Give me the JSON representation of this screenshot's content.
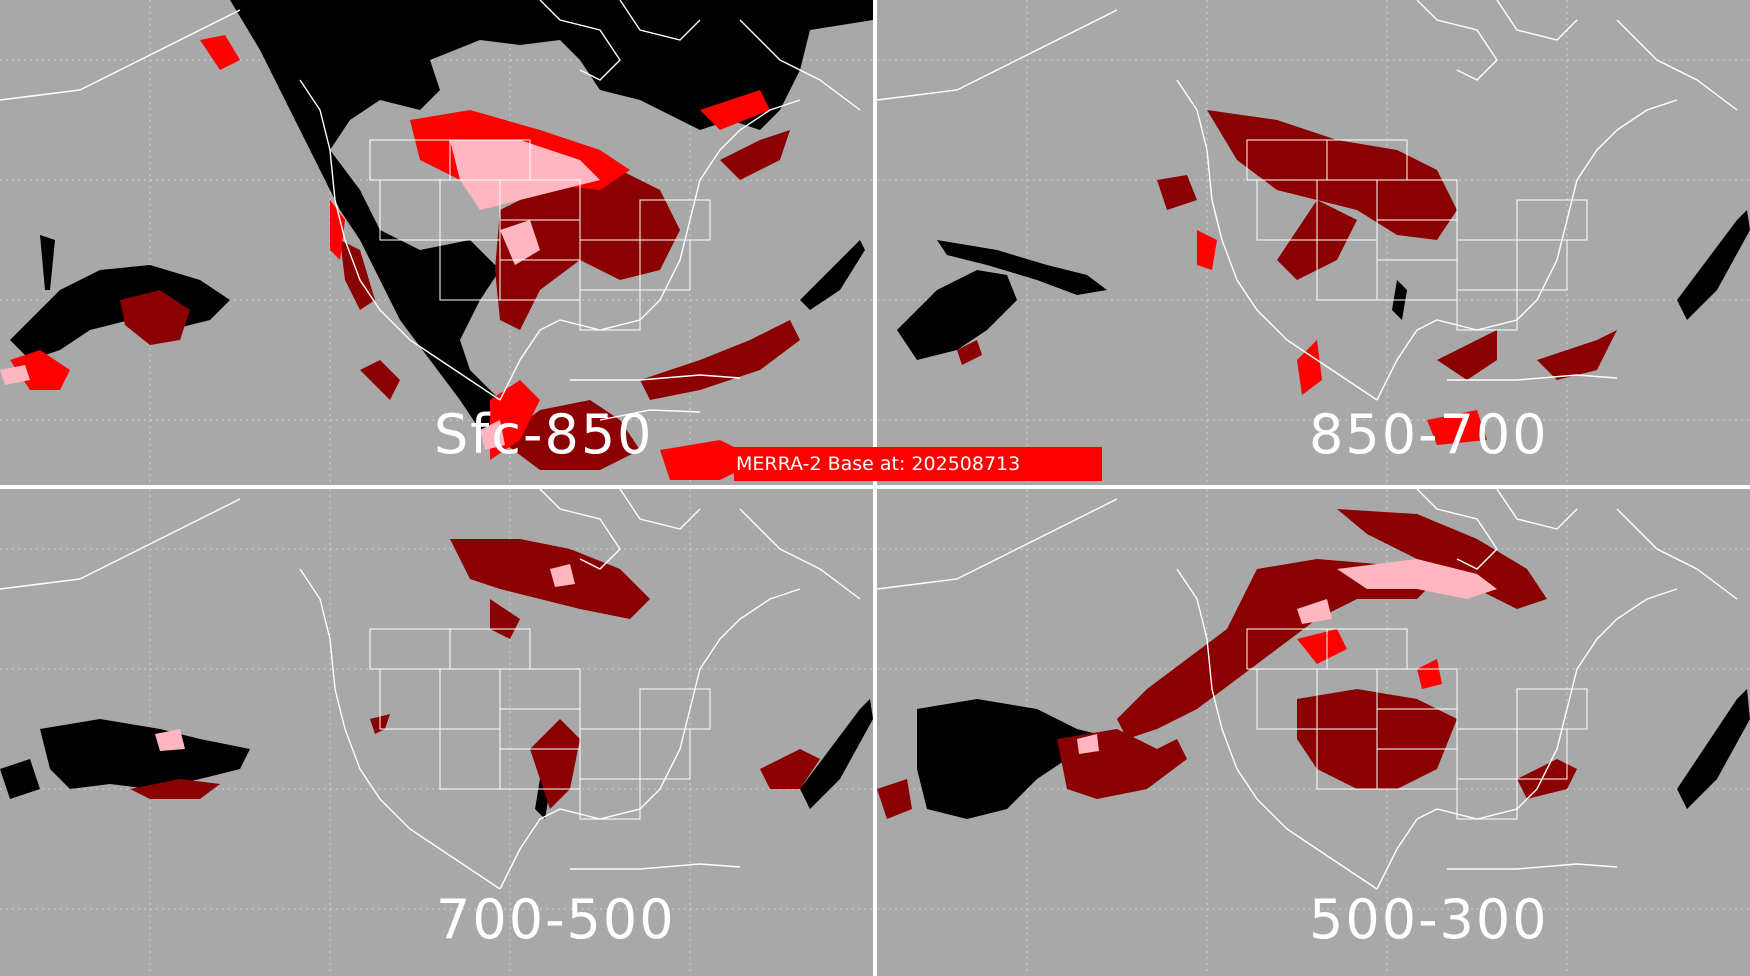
{
  "figure": {
    "banner_text": "MERRA-2 Base at: 202508713",
    "colors": {
      "background": "#a8a8a8",
      "black_mask": "#000000",
      "dark_red": "#8b0000",
      "red": "#ff0000",
      "pink": "#ffb6c1",
      "coastline": "#ffffff",
      "grid": "#d0d0d0"
    },
    "panels": [
      {
        "label": "Sfc-850"
      },
      {
        "label": "850-700"
      },
      {
        "label": "700-500"
      },
      {
        "label": "500-300"
      }
    ]
  }
}
